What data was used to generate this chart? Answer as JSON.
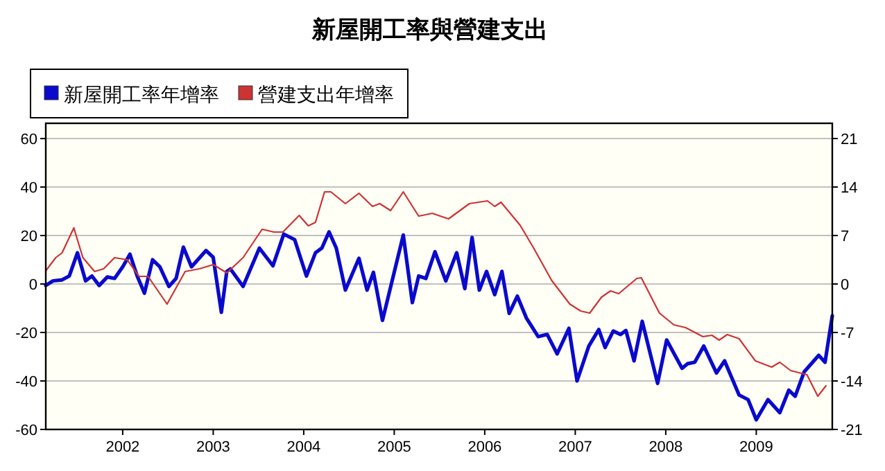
{
  "chart_data": {
    "type": "line",
    "title": "新屋開工率與營建支出",
    "xlim": [
      2001.15,
      2009.84
    ],
    "xticks": [
      2002,
      2003,
      2004,
      2005,
      2006,
      2007,
      2008,
      2009
    ],
    "ylim": [
      -60,
      66.3
    ],
    "yticks": [
      -60,
      -40,
      -20,
      0,
      20,
      40,
      60
    ],
    "y2lim": [
      -21,
      23.2
    ],
    "y2ticks": [
      -21,
      -14,
      -7,
      0,
      7,
      14,
      21
    ],
    "grid": "y",
    "legend": "top left",
    "series": [
      {
        "name": "新屋開工率年增率",
        "color": "#0a0acc",
        "axis": "y",
        "x": [
          2001.15,
          2001.23,
          2001.33,
          2001.41,
          2001.5,
          2001.59,
          2001.66,
          2001.74,
          2001.83,
          2001.91,
          2002.0,
          2002.08,
          2002.16,
          2002.24,
          2002.33,
          2002.41,
          2002.51,
          2002.59,
          2002.67,
          2002.76,
          2002.92,
          2003.0,
          2003.09,
          2003.15,
          2003.19,
          2003.33,
          2003.51,
          2003.66,
          2003.78,
          2003.9,
          2004.03,
          2004.13,
          2004.2,
          2004.28,
          2004.36,
          2004.46,
          2004.61,
          2004.7,
          2004.77,
          2004.87,
          2005.1,
          2005.2,
          2005.27,
          2005.35,
          2005.45,
          2005.57,
          2005.69,
          2005.78,
          2005.86,
          2005.94,
          2006.02,
          2006.11,
          2006.19,
          2006.27,
          2006.36,
          2006.46,
          2006.59,
          2006.69,
          2006.8,
          2006.93,
          2007.02,
          2007.15,
          2007.26,
          2007.33,
          2007.42,
          2007.5,
          2007.56,
          2007.65,
          2007.74,
          2007.91,
          2008.01,
          2008.18,
          2008.24,
          2008.32,
          2008.42,
          2008.56,
          2008.65,
          2008.81,
          2008.91,
          2009.0,
          2009.13,
          2009.26,
          2009.36,
          2009.43,
          2009.53,
          2009.69,
          2009.76,
          2009.84
        ],
        "values": [
          -0.6,
          1.3,
          1.7,
          3.3,
          12.9,
          1.3,
          3.3,
          -0.6,
          2.9,
          2.3,
          7.1,
          12.3,
          3.3,
          -3.8,
          10,
          7.1,
          -1,
          2.3,
          15.2,
          7.1,
          13.8,
          11,
          -11.7,
          5.2,
          6.2,
          -1,
          14.8,
          7.5,
          20.6,
          18.3,
          3.3,
          12.9,
          14.8,
          21.5,
          14.8,
          -2.5,
          10.6,
          -2.5,
          4.8,
          -15,
          20.2,
          -7.7,
          3.3,
          2.3,
          13.3,
          1.3,
          12.9,
          -1.9,
          19.2,
          -2.5,
          5.2,
          -4.4,
          5.2,
          -12.1,
          -5,
          -14,
          -21.7,
          -20.8,
          -28.8,
          -18.3,
          -40,
          -25.6,
          -18.8,
          -26.2,
          -19.4,
          -20.8,
          -19.2,
          -31.7,
          -15.4,
          -41,
          -23.1,
          -34.8,
          -32.9,
          -32.3,
          -25.6,
          -36.7,
          -31.7,
          -45.8,
          -47.7,
          -56,
          -47.7,
          -53.1,
          -43.8,
          -46.3,
          -36.2,
          -29.4,
          -32.3,
          -13.1
        ]
      },
      {
        "name": "營建支出年增率",
        "color": "#cc3333",
        "axis": "y2",
        "x": [
          2001.15,
          2001.26,
          2001.33,
          2001.46,
          2001.56,
          2001.69,
          2001.79,
          2001.91,
          2002.05,
          2002.18,
          2002.28,
          2002.49,
          2002.69,
          2002.85,
          2003.0,
          2003.15,
          2003.33,
          2003.54,
          2003.67,
          2003.77,
          2003.95,
          2004.05,
          2004.13,
          2004.23,
          2004.3,
          2004.46,
          2004.61,
          2004.76,
          2004.84,
          2004.96,
          2005.1,
          2005.27,
          2005.42,
          2005.6,
          2005.83,
          2006.03,
          2006.11,
          2006.18,
          2006.39,
          2006.54,
          2006.74,
          2006.94,
          2007.06,
          2007.16,
          2007.29,
          2007.39,
          2007.48,
          2007.68,
          2007.73,
          2007.93,
          2008.09,
          2008.22,
          2008.41,
          2008.51,
          2008.59,
          2008.68,
          2008.81,
          2008.99,
          2009.17,
          2009.26,
          2009.38,
          2009.56,
          2009.68,
          2009.77
        ],
        "values": [
          1.9,
          3.8,
          4.5,
          8.1,
          3.8,
          1.8,
          2.2,
          3.8,
          3.5,
          1.1,
          1.1,
          -2.9,
          1.8,
          2.2,
          2.8,
          1.6,
          3.8,
          7.9,
          7.5,
          7.5,
          9.9,
          8.4,
          8.9,
          13.3,
          13.3,
          11.6,
          13.1,
          11.2,
          11.6,
          10.6,
          13.3,
          9.8,
          10.2,
          9.4,
          11.6,
          12.0,
          11.2,
          11.8,
          8.5,
          5.2,
          0.5,
          -2.9,
          -3.9,
          -4.2,
          -1.9,
          -1.0,
          -1.4,
          0.8,
          0.9,
          -4.2,
          -5.9,
          -6.3,
          -7.6,
          -7.4,
          -8.1,
          -7.3,
          -7.9,
          -11.1,
          -12.0,
          -11.3,
          -12.5,
          -13.1,
          -16.2,
          -14.7
        ]
      }
    ]
  }
}
